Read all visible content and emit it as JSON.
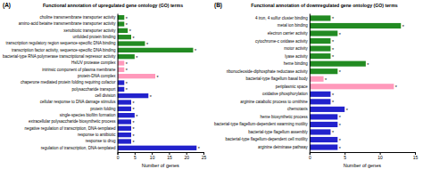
{
  "chart_data": [
    {
      "type": "bar",
      "orientation": "horizontal",
      "title": "Functional annotation of upregulated gene ontology (GO) terms",
      "panel_label": "(A)",
      "xlabel": "Number of genes",
      "xlim": [
        0,
        25
      ],
      "xticks": [
        0,
        5,
        10,
        15,
        20,
        25
      ],
      "grid": false,
      "categories": [
        "regulation of transcription, DNA-templated",
        "response to drug",
        "response to antibiotic",
        "negative regulation of transcription, DNA-templated",
        "extracellular polysaccharide biosynthetic process",
        "single-species biofilm formation",
        "protein folding",
        "cellular response to DNA damage stimulus",
        "cell division",
        "polysaccharide transport",
        "chaperone mediated protein folding requiring cofactor",
        "protein-DNA complex",
        "intrinsic component of plasma membrane",
        "HslUV protease complex",
        "bacterial-type RNA polymerase transcriptional repressor activity",
        "transcription factor activity, sequence-specific DNA binding",
        "transcription regulatory region sequence-specific DNA binding",
        "unfolded protein binding",
        "xenobiotic transporter activity",
        "amino-acid betaine transmembrane transporter activity",
        "choline transmembrane transporter activity"
      ],
      "values": [
        23,
        4,
        4,
        4,
        4,
        5,
        4,
        4,
        9,
        2,
        2,
        11,
        2,
        2,
        5,
        22,
        8,
        4,
        3,
        2,
        2
      ],
      "colors": [
        "#2222cc",
        "#2222cc",
        "#2222cc",
        "#2222cc",
        "#2222cc",
        "#2222cc",
        "#2222cc",
        "#2222cc",
        "#2222cc",
        "#2222cc",
        "#2222cc",
        "#ff99bb",
        "#ff99bb",
        "#ff99bb",
        "#228B22",
        "#228B22",
        "#228B22",
        "#228B22",
        "#228B22",
        "#228B22",
        "#228B22"
      ],
      "annotations": [
        "*",
        "*",
        "*",
        "*",
        "*",
        "*",
        "*",
        "*",
        "*",
        "*",
        "*",
        "*",
        "*",
        "*",
        "*",
        "*",
        "*",
        "*",
        "*",
        "*",
        "*"
      ]
    },
    {
      "type": "bar",
      "orientation": "horizontal",
      "title": "Functional annotation of downregulated gene ontology (GO) terms",
      "panel_label": "(B)",
      "xlabel": "Number of genes",
      "xlim": [
        0,
        15
      ],
      "xticks": [
        0,
        5,
        10,
        15
      ],
      "grid": false,
      "categories": [
        "arginine deiminase pathway",
        "bacterial-type flagellum-dependent cell motility",
        "bacterial-type flagellum assembly",
        "bacterial-type flagellum-dependent swarming motility",
        "heme biosynthetic process",
        "chemotaxis",
        "arginine catabolic process to ornithine",
        "oxidative phosphorylation",
        "periplasmic space",
        "bacterial-type flagellum basal body",
        "ribonucleoside-diphosphate reductase activity",
        "heme binding",
        "lyase activity",
        "motor activity",
        "cytochrome-c oxidase activity",
        "electron carrier activity",
        "metal ion binding",
        "4 iron, 4 sulfur cluster binding"
      ],
      "values": [
        4,
        4,
        3,
        4,
        4,
        5,
        3,
        3,
        12,
        2,
        4,
        8,
        3,
        3,
        3,
        4,
        13,
        3
      ],
      "colors": [
        "#2222cc",
        "#2222cc",
        "#2222cc",
        "#2222cc",
        "#2222cc",
        "#2222cc",
        "#2222cc",
        "#2222cc",
        "#ff99bb",
        "#ff99bb",
        "#228B22",
        "#228B22",
        "#228B22",
        "#228B22",
        "#228B22",
        "#228B22",
        "#228B22",
        "#228B22"
      ],
      "annotations": [
        "*",
        "*",
        "*",
        "*",
        "*",
        "*",
        "*",
        "*",
        "*",
        "*",
        "*",
        "*",
        "*",
        "*",
        "*",
        "*",
        "*",
        "*"
      ]
    }
  ]
}
